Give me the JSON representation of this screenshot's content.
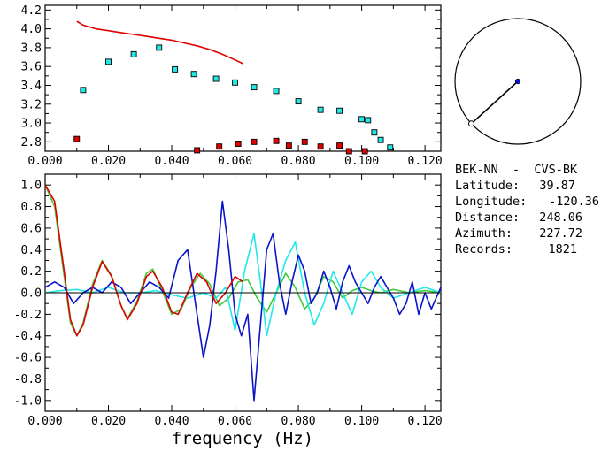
{
  "info": {
    "station_pair": "BEK-NN  -  CVS-BK",
    "latitude_label": "Latitude:",
    "latitude_value": "39.87",
    "longitude_label": "Longitude:",
    "longitude_value": "-120.36",
    "distance_label": "Distance:",
    "distance_value": "248.06",
    "azimuth_label": "Azimuth:",
    "azimuth_value": "227.72",
    "records_label": "Records:",
    "records_value": "1821"
  },
  "colors": {
    "red": "#e00000",
    "cyan": "#22e8e8",
    "blue": "#0a14c8",
    "green": "#3ccc3c",
    "black": "#000000"
  },
  "azimuth_map": {
    "azimuth_deg": 227.72
  },
  "chart_data": [
    {
      "type": "scatter",
      "title": "",
      "xlabel": "",
      "ylabel": "",
      "xlim": [
        0,
        0.125
      ],
      "ylim": [
        2.7,
        4.25
      ],
      "x_ticks": [
        "0.000",
        "0.020",
        "0.040",
        "0.060",
        "0.080",
        "0.100",
        "0.120"
      ],
      "y_ticks": [
        "2.8",
        "3.0",
        "3.2",
        "3.4",
        "3.6",
        "3.8",
        "4.0",
        "4.2"
      ],
      "series": [
        {
          "kind": "line",
          "color": "red",
          "x": [
            0.01,
            0.012,
            0.014,
            0.016,
            0.018,
            0.02,
            0.024,
            0.028,
            0.032,
            0.036,
            0.04,
            0.044,
            0.048,
            0.052,
            0.056,
            0.06,
            0.0625
          ],
          "y": [
            4.08,
            4.04,
            4.02,
            4.0,
            3.99,
            3.98,
            3.96,
            3.94,
            3.92,
            3.9,
            3.88,
            3.85,
            3.82,
            3.78,
            3.73,
            3.67,
            3.63
          ]
        },
        {
          "kind": "points",
          "color": "cyan",
          "x": [
            0.012,
            0.02,
            0.028,
            0.036,
            0.041,
            0.047,
            0.054,
            0.06,
            0.066,
            0.073,
            0.08,
            0.087,
            0.093,
            0.1,
            0.102,
            0.104,
            0.106,
            0.109
          ],
          "y": [
            3.35,
            3.65,
            3.73,
            3.8,
            3.57,
            3.52,
            3.47,
            3.43,
            3.38,
            3.34,
            3.23,
            3.14,
            3.13,
            3.04,
            3.03,
            2.9,
            2.82,
            2.74
          ]
        },
        {
          "kind": "points",
          "color": "red",
          "x": [
            0.01,
            0.048,
            0.055,
            0.061,
            0.066,
            0.073,
            0.077,
            0.082,
            0.087,
            0.093,
            0.096,
            0.101
          ],
          "y": [
            2.83,
            2.71,
            2.75,
            2.78,
            2.8,
            2.81,
            2.76,
            2.8,
            2.75,
            2.76,
            2.7,
            2.7
          ]
        }
      ]
    },
    {
      "type": "line",
      "title": "",
      "xlabel": "frequency (Hz)",
      "ylabel": "",
      "xlim": [
        0,
        0.125
      ],
      "ylim": [
        -1.1,
        1.1
      ],
      "x_ticks": [
        "0.000",
        "0.020",
        "0.040",
        "0.060",
        "0.080",
        "0.100",
        "0.120"
      ],
      "y_ticks": [
        "1.0",
        "0.8",
        "0.6",
        "0.4",
        "0.2",
        "0.0",
        "-0.2",
        "-0.4",
        "-0.6",
        "-0.8",
        "-1.0"
      ],
      "series": [
        {
          "color": "red",
          "x": [
            0.0,
            0.003,
            0.006,
            0.008,
            0.01,
            0.012,
            0.015,
            0.018,
            0.021,
            0.024,
            0.026,
            0.029,
            0.032,
            0.034,
            0.037,
            0.04,
            0.042,
            0.045,
            0.048,
            0.051,
            0.054,
            0.057,
            0.06,
            0.0625
          ],
          "y": [
            1.0,
            0.85,
            0.2,
            -0.25,
            -0.4,
            -0.3,
            0.05,
            0.29,
            0.15,
            -0.12,
            -0.25,
            -0.1,
            0.15,
            0.2,
            0.05,
            -0.18,
            -0.2,
            0.0,
            0.18,
            0.1,
            -0.1,
            0.0,
            0.15,
            0.1
          ]
        },
        {
          "color": "green",
          "x": [
            0.0,
            0.003,
            0.006,
            0.008,
            0.01,
            0.012,
            0.015,
            0.018,
            0.021,
            0.024,
            0.026,
            0.029,
            0.032,
            0.034,
            0.037,
            0.04,
            0.043,
            0.046,
            0.049,
            0.052,
            0.055,
            0.058,
            0.061,
            0.064,
            0.067,
            0.07,
            0.073,
            0.076,
            0.079,
            0.082,
            0.085,
            0.088,
            0.091,
            0.094,
            0.097,
            0.1,
            0.103,
            0.106,
            0.11,
            0.115,
            0.12,
            0.125
          ],
          "y": [
            1.0,
            0.8,
            0.15,
            -0.28,
            -0.4,
            -0.28,
            0.08,
            0.3,
            0.16,
            -0.12,
            -0.24,
            -0.08,
            0.18,
            0.22,
            0.02,
            -0.2,
            -0.15,
            0.05,
            0.18,
            0.08,
            -0.12,
            -0.05,
            0.1,
            0.12,
            -0.05,
            -0.18,
            0.0,
            0.18,
            0.05,
            -0.15,
            -0.05,
            0.15,
            0.1,
            -0.05,
            0.02,
            0.05,
            0.02,
            0.0,
            0.03,
            0.0,
            0.02,
            0.0
          ]
        },
        {
          "color": "cyan",
          "x": [
            0.0,
            0.005,
            0.01,
            0.015,
            0.02,
            0.025,
            0.03,
            0.035,
            0.04,
            0.045,
            0.05,
            0.054,
            0.057,
            0.06,
            0.063,
            0.066,
            0.068,
            0.07,
            0.073,
            0.076,
            0.079,
            0.082,
            0.085,
            0.088,
            0.091,
            0.094,
            0.097,
            0.1,
            0.103,
            0.106,
            0.11,
            0.115,
            0.12,
            0.125
          ],
          "y": [
            0.0,
            0.02,
            0.03,
            0.0,
            0.05,
            0.0,
            0.0,
            0.02,
            -0.02,
            -0.05,
            0.0,
            -0.05,
            0.05,
            -0.35,
            0.2,
            0.55,
            0.1,
            -0.4,
            0.0,
            0.3,
            0.47,
            0.0,
            -0.3,
            -0.1,
            0.2,
            0.0,
            -0.2,
            0.1,
            0.2,
            0.05,
            -0.05,
            0.0,
            0.05,
            0.0
          ]
        },
        {
          "color": "blue",
          "x": [
            0.0,
            0.003,
            0.006,
            0.009,
            0.012,
            0.015,
            0.018,
            0.021,
            0.024,
            0.027,
            0.03,
            0.033,
            0.036,
            0.039,
            0.042,
            0.045,
            0.048,
            0.05,
            0.052,
            0.054,
            0.056,
            0.058,
            0.06,
            0.062,
            0.064,
            0.066,
            0.068,
            0.07,
            0.072,
            0.074,
            0.076,
            0.078,
            0.08,
            0.082,
            0.084,
            0.086,
            0.088,
            0.09,
            0.092,
            0.094,
            0.096,
            0.098,
            0.1,
            0.102,
            0.104,
            0.106,
            0.108,
            0.11,
            0.112,
            0.114,
            0.116,
            0.118,
            0.12,
            0.122,
            0.125
          ],
          "y": [
            0.05,
            0.1,
            0.05,
            -0.1,
            0.0,
            0.05,
            0.0,
            0.1,
            0.05,
            -0.1,
            0.0,
            0.1,
            0.05,
            -0.05,
            0.3,
            0.4,
            -0.2,
            -0.6,
            -0.3,
            0.2,
            0.85,
            0.4,
            -0.2,
            -0.4,
            -0.2,
            -1.0,
            -0.3,
            0.4,
            0.55,
            0.1,
            -0.2,
            0.1,
            0.35,
            0.2,
            -0.1,
            0.0,
            0.2,
            0.05,
            -0.15,
            0.1,
            0.25,
            0.1,
            0.0,
            -0.1,
            0.05,
            0.15,
            0.05,
            -0.05,
            -0.2,
            -0.1,
            0.1,
            -0.2,
            0.0,
            -0.15,
            0.05
          ]
        },
        {
          "kind": "reference",
          "color": "black",
          "x": [
            0.0,
            0.125
          ],
          "y": [
            0.0,
            0.0
          ]
        }
      ]
    }
  ]
}
